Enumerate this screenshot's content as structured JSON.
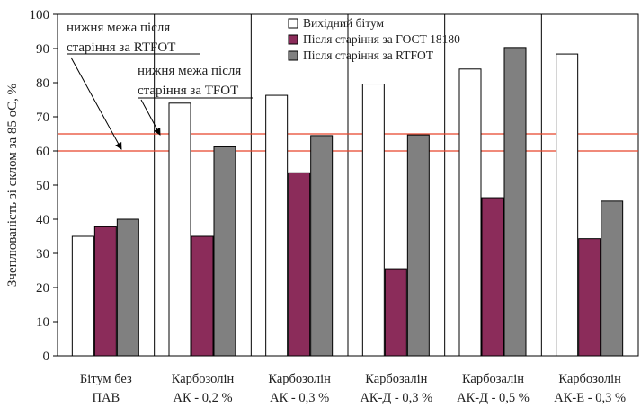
{
  "chart_data": {
    "type": "bar",
    "title": "",
    "ylabel": "Зчеплюваність зі склом за 85 оС, %",
    "xlabel": "",
    "ylim": [
      0,
      100
    ],
    "yticks": [
      0,
      10,
      20,
      30,
      40,
      50,
      60,
      70,
      80,
      90,
      100
    ],
    "grid": "vertical separators between categories",
    "legend_position": "top-center",
    "categories": [
      [
        "Бітум без",
        "ПАВ"
      ],
      [
        "Карбозолін",
        "АК - 0,2 %"
      ],
      [
        "Карбозолін",
        "АК - 0,3 %"
      ],
      [
        "Карбозалін",
        "АК-Д - 0,3 %"
      ],
      [
        "Карбозалін",
        "АК-Д - 0,5 %"
      ],
      [
        "Карбозолін",
        "АК-Е - 0,3 %"
      ]
    ],
    "series": [
      {
        "name": "Вихідний бітум",
        "color": "#ffffff",
        "values": [
          35,
          74,
          76.3,
          79.6,
          84,
          88.4
        ]
      },
      {
        "name": "Після старіння за ГОСТ 18180",
        "color": "#8b2c5a",
        "values": [
          37.8,
          35,
          53.6,
          25.5,
          46.3,
          34.3
        ]
      },
      {
        "name": "Після старіння за RTFOT",
        "color": "#808080",
        "values": [
          40,
          61.2,
          64.5,
          64.7,
          90.3,
          45.3
        ]
      }
    ],
    "reference_lines": [
      {
        "value": 65,
        "color": "#e8442a",
        "label": [
          "нижня межа після",
          "старіння за RTFOT"
        ]
      },
      {
        "value": 60,
        "color": "#e8442a",
        "label": [
          "нижня межа після",
          "старіння за TFOT"
        ]
      }
    ]
  }
}
